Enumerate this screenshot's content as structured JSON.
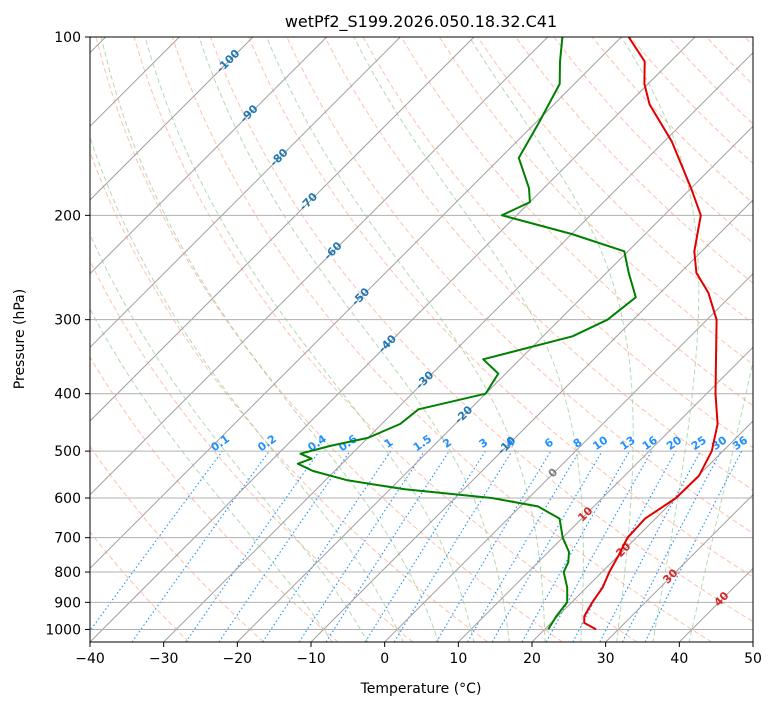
{
  "chart_data": {
    "type": "line",
    "diagram": "skew-T log-P",
    "title": "wetPf2_S199.2026.050.18.32.C41",
    "xlabel": "Temperature (°C)",
    "ylabel": "Pressure (hPa)",
    "xlim": [
      -40,
      50
    ],
    "ylim": [
      1050,
      100
    ],
    "xticks": [
      -40,
      -30,
      -20,
      -10,
      0,
      10,
      20,
      30,
      40,
      50
    ],
    "yticks": [
      1000,
      900,
      800,
      700,
      600,
      500,
      400,
      300,
      200,
      100
    ],
    "grid": true,
    "colors": {
      "temperature": "#e00000",
      "dewpoint": "#008000",
      "isotherm": "#a0a0a0",
      "dry_adiabat": "#ffa080",
      "moist_adiabat": "#80c080",
      "mixing_ratio": "#1e90ff",
      "isotherm_label": "#1f77b4",
      "moist_label": "#d62728"
    },
    "series": [
      {
        "name": "Temperature",
        "points": [
          {
            "p": 1000,
            "t": 27.0
          },
          {
            "p": 975,
            "t": 24.5
          },
          {
            "p": 950,
            "t": 23.6
          },
          {
            "p": 900,
            "t": 22.8
          },
          {
            "p": 850,
            "t": 22.2
          },
          {
            "p": 800,
            "t": 21.0
          },
          {
            "p": 750,
            "t": 20.0
          },
          {
            "p": 700,
            "t": 18.8
          },
          {
            "p": 650,
            "t": 18.6
          },
          {
            "p": 600,
            "t": 20.0
          },
          {
            "p": 550,
            "t": 20.1
          },
          {
            "p": 500,
            "t": 18.5
          },
          {
            "p": 450,
            "t": 15.6
          },
          {
            "p": 400,
            "t": 11.2
          },
          {
            "p": 350,
            "t": 6.6
          },
          {
            "p": 300,
            "t": 1.3
          },
          {
            "p": 270,
            "t": -3.5
          },
          {
            "p": 250,
            "t": -7.8
          },
          {
            "p": 230,
            "t": -11.0
          },
          {
            "p": 200,
            "t": -15.0
          },
          {
            "p": 180,
            "t": -20.0
          },
          {
            "p": 150,
            "t": -29.0
          },
          {
            "p": 130,
            "t": -37.0
          },
          {
            "p": 120,
            "t": -40.5
          },
          {
            "p": 110,
            "t": -43.5
          },
          {
            "p": 100,
            "t": -49.0
          }
        ]
      },
      {
        "name": "Dewpoint",
        "points": [
          {
            "p": 1000,
            "t": 20.5
          },
          {
            "p": 950,
            "t": 19.8
          },
          {
            "p": 900,
            "t": 19.4
          },
          {
            "p": 850,
            "t": 17.4
          },
          {
            "p": 800,
            "t": 14.8
          },
          {
            "p": 770,
            "t": 14.1
          },
          {
            "p": 740,
            "t": 12.8
          },
          {
            "p": 700,
            "t": 10.0
          },
          {
            "p": 650,
            "t": 7.0
          },
          {
            "p": 620,
            "t": 2.4
          },
          {
            "p": 600,
            "t": -5.0
          },
          {
            "p": 580,
            "t": -18.0
          },
          {
            "p": 560,
            "t": -27.0
          },
          {
            "p": 540,
            "t": -33.0
          },
          {
            "p": 525,
            "t": -36.0
          },
          {
            "p": 515,
            "t": -34.8
          },
          {
            "p": 505,
            "t": -37.0
          },
          {
            "p": 490,
            "t": -34.0
          },
          {
            "p": 475,
            "t": -30.0
          },
          {
            "p": 450,
            "t": -27.5
          },
          {
            "p": 425,
            "t": -27.0
          },
          {
            "p": 400,
            "t": -20.0
          },
          {
            "p": 370,
            "t": -21.0
          },
          {
            "p": 350,
            "t": -25.0
          },
          {
            "p": 320,
            "t": -16.0
          },
          {
            "p": 300,
            "t": -13.5
          },
          {
            "p": 275,
            "t": -12.7
          },
          {
            "p": 250,
            "t": -17.0
          },
          {
            "p": 230,
            "t": -20.5
          },
          {
            "p": 215,
            "t": -30.0
          },
          {
            "p": 200,
            "t": -42.0
          },
          {
            "p": 190,
            "t": -40.0
          },
          {
            "p": 180,
            "t": -42.0
          },
          {
            "p": 160,
            "t": -47.5
          },
          {
            "p": 140,
            "t": -49.5
          },
          {
            "p": 120,
            "t": -52.0
          },
          {
            "p": 110,
            "t": -55.0
          },
          {
            "p": 100,
            "t": -58.0
          }
        ]
      }
    ],
    "mixing_ratio_lines": [
      0.1,
      0.2,
      0.4,
      0.6,
      1,
      1.5,
      2,
      3,
      4,
      6,
      8,
      10,
      13,
      16,
      20,
      25,
      30,
      36
    ],
    "mixing_ratio_labels": [
      "0.1",
      "0.2",
      "0.4",
      "0.6",
      "1",
      "1.5",
      "2",
      "3",
      "4",
      "6",
      "8",
      "10",
      "13",
      "16",
      "20",
      "25",
      "30",
      "36"
    ],
    "isotherm_labels": [
      {
        "t": -100,
        "label": "-100"
      },
      {
        "t": -90,
        "label": "-90"
      },
      {
        "t": -80,
        "label": "-80"
      },
      {
        "t": -70,
        "label": "-70"
      },
      {
        "t": -60,
        "label": "-60"
      },
      {
        "t": -50,
        "label": "-50"
      },
      {
        "t": -40,
        "label": "-40"
      },
      {
        "t": -30,
        "label": "-30"
      },
      {
        "t": -20,
        "label": "-20"
      },
      {
        "t": -10,
        "label": "-10"
      },
      {
        "t": 0,
        "label": "0"
      }
    ],
    "moist_adiabat_labels": [
      {
        "t": 10,
        "label": "10"
      },
      {
        "t": 20,
        "label": "20"
      },
      {
        "t": 30,
        "label": "30"
      },
      {
        "t": 40,
        "label": "40"
      }
    ]
  }
}
